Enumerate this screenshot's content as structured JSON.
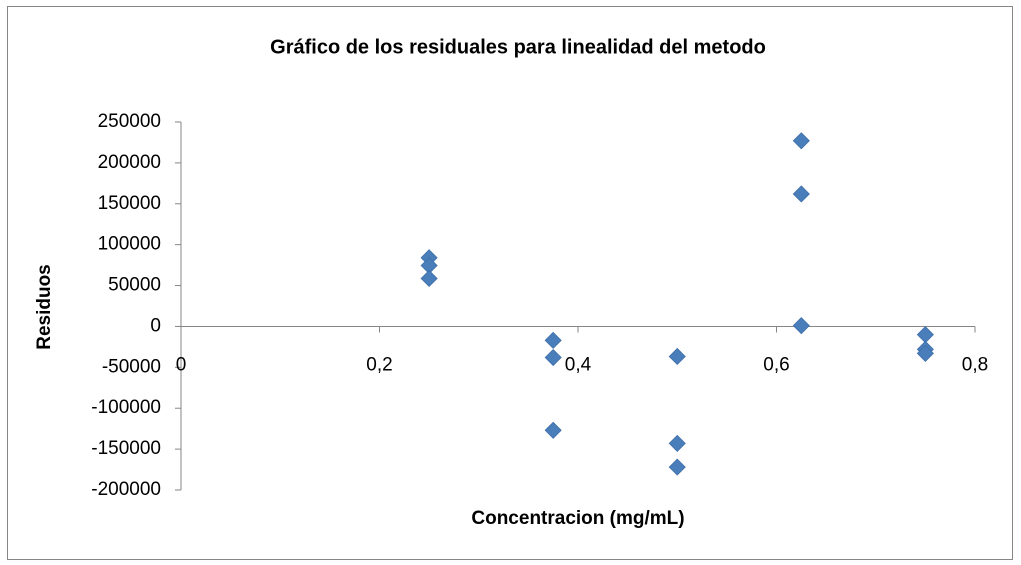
{
  "chart_data": {
    "type": "scatter",
    "title": "Gráfico de los residuales para linealidad del metodo",
    "x_label": "Concentracion (mg/mL)",
    "y_label": "Residuos",
    "x": [
      0.25,
      0.25,
      0.25,
      0.375,
      0.375,
      0.375,
      0.5,
      0.5,
      0.5,
      0.625,
      0.625,
      0.625,
      0.75,
      0.75,
      0.75
    ],
    "values": [
      84000,
      74500,
      58700,
      -17000,
      -38000,
      -127000,
      -36700,
      -143000,
      -172000,
      227000,
      162000,
      1000,
      -10000,
      -28000,
      -33000
    ],
    "color": "#4a7ebb",
    "xlim": [
      0,
      0.8
    ],
    "xticks": [
      0,
      {
        "value": 0.2,
        "label": "0,2"
      },
      {
        "value": 0.4,
        "label": "0,4"
      },
      {
        "value": 0.6,
        "label": "0,6"
      },
      {
        "value": 0.8,
        "label": "0,8"
      }
    ],
    "ylim": [
      -200000,
      250000
    ],
    "yticks": [
      -200000,
      -150000,
      -100000,
      -50000,
      0,
      50000,
      100000,
      150000,
      200000,
      250000
    ],
    "grid": false
  }
}
